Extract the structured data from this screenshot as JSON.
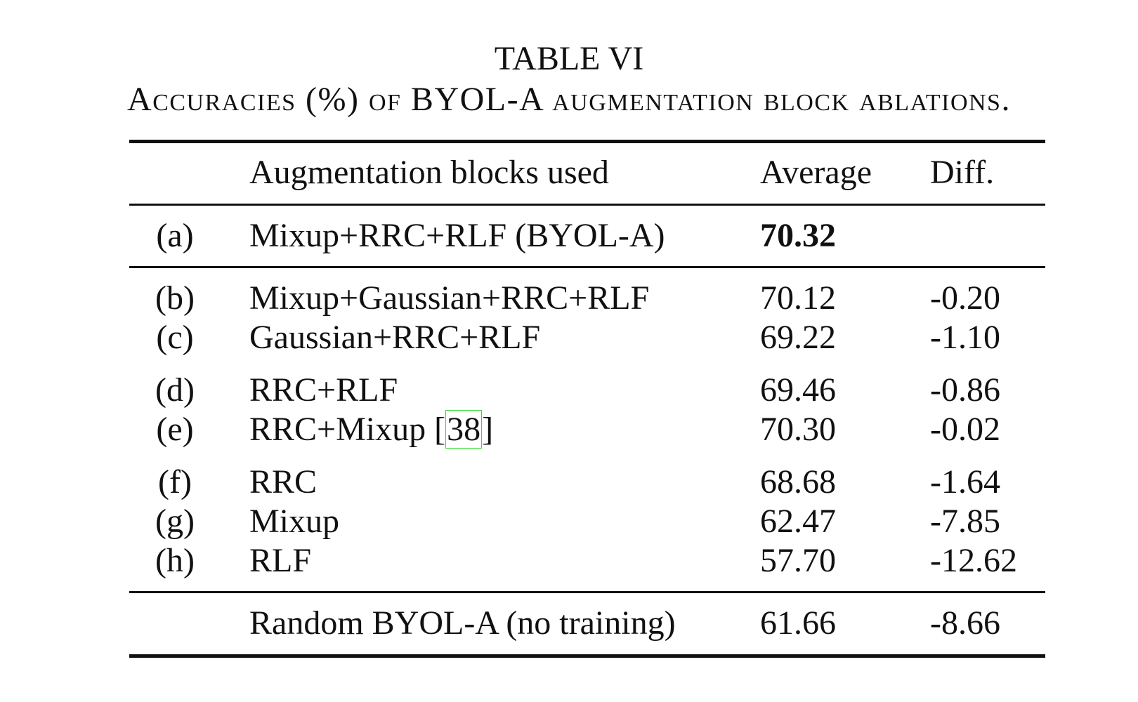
{
  "caption": {
    "title": "TABLE VI",
    "text": "Accuracies (%) of BYOL-A augmentation block ablations."
  },
  "table": {
    "headers": {
      "id": "",
      "blocks": "Augmentation blocks used",
      "average": "Average",
      "diff": "Diff."
    },
    "rows": [
      {
        "id": "(a)",
        "blocks": "Mixup+RRC+RLF (BYOL-A)",
        "average": "70.32",
        "diff": ""
      },
      {
        "id": "(b)",
        "blocks": "Mixup+Gaussian+RRC+RLF",
        "average": "70.12",
        "diff": "-0.20"
      },
      {
        "id": "(c)",
        "blocks": "Gaussian+RRC+RLF",
        "average": "69.22",
        "diff": "-1.10"
      },
      {
        "id": "(d)",
        "blocks": "RRC+RLF",
        "average": "69.46",
        "diff": "-0.86"
      },
      {
        "id": "(e)",
        "blocks": "RRC+Mixup [",
        "cite": "38",
        "blocks_end": "]",
        "average": "70.30",
        "diff": "-0.02"
      },
      {
        "id": "(f)",
        "blocks": "RRC",
        "average": "68.68",
        "diff": "-1.64"
      },
      {
        "id": "(g)",
        "blocks": "Mixup",
        "average": "62.47",
        "diff": "-7.85"
      },
      {
        "id": "(h)",
        "blocks": "RLF",
        "average": "57.70",
        "diff": "-12.62"
      },
      {
        "id": "",
        "blocks": "Random BYOL-A (no training)",
        "average": "61.66",
        "diff": "-8.66"
      }
    ]
  }
}
